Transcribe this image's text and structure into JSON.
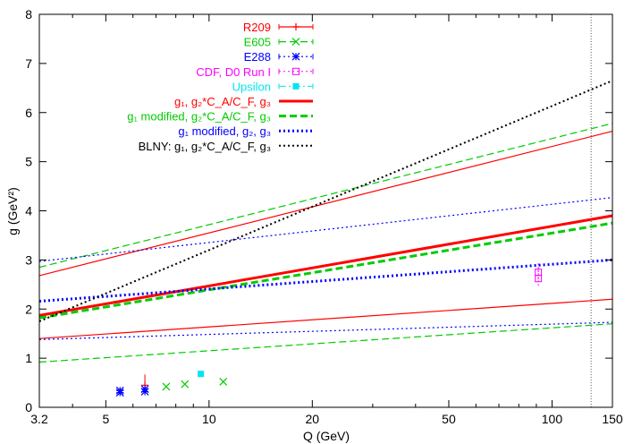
{
  "chart_data": {
    "type": "line",
    "xscale": "log",
    "xlim": [
      3.2,
      150
    ],
    "ylim": [
      0,
      8
    ],
    "xlabel": "Q (GeV)",
    "ylabel": "g (GeV²)",
    "xticks": [
      3.2,
      5,
      10,
      20,
      50,
      100,
      150
    ],
    "xtick_labels": [
      "3.2",
      "5",
      "10",
      "20",
      "50",
      "100",
      "150"
    ],
    "yticks": [
      0,
      1,
      2,
      3,
      4,
      5,
      6,
      7,
      8
    ],
    "ytick_labels": [
      "0",
      "1",
      "2",
      "3",
      "4",
      "5",
      "6",
      "7",
      "8"
    ],
    "vline_x": 130,
    "series": [
      {
        "name": "R209",
        "color": "#ff0000",
        "style": "solid",
        "width": 1.2,
        "marker": "plus",
        "points": [
          {
            "x": 6.5,
            "y": 0.45
          }
        ],
        "band_lines": [
          {
            "y_at_xmin": 2.68,
            "y_at_xmax": 5.62
          },
          {
            "y_at_xmin": 1.4,
            "y_at_xmax": 2.2
          }
        ]
      },
      {
        "name": "E605",
        "color": "#00cc00",
        "style": "dashed",
        "width": 1.2,
        "marker": "cross",
        "points": [
          {
            "x": 7.5,
            "y": 0.42
          },
          {
            "x": 8.5,
            "y": 0.47
          },
          {
            "x": 11.0,
            "y": 0.52
          }
        ],
        "band_lines": [
          {
            "y_at_xmin": 2.85,
            "y_at_xmax": 5.78
          },
          {
            "y_at_xmin": 0.92,
            "y_at_xmax": 1.7
          }
        ]
      },
      {
        "name": "E288",
        "color": "#0000ff",
        "style": "dotted",
        "width": 1.2,
        "marker": "star",
        "points": [
          {
            "x": 5.5,
            "y": 0.3
          },
          {
            "x": 5.5,
            "y": 0.34
          },
          {
            "x": 6.5,
            "y": 0.32
          },
          {
            "x": 6.5,
            "y": 0.37
          }
        ],
        "band_lines": [
          {
            "y_at_xmin": 2.97,
            "y_at_xmax": 4.27
          },
          {
            "y_at_xmin": 1.38,
            "y_at_xmax": 1.73
          }
        ]
      },
      {
        "name": "CDF, D0 Run I",
        "color": "#ff00ff",
        "style": "dotted",
        "width": 1.0,
        "marker": "box",
        "points": [
          {
            "x": 91.2,
            "y": 2.62
          },
          {
            "x": 91.2,
            "y": 2.75
          }
        ],
        "band_lines": []
      },
      {
        "name": "Upsilon",
        "color": "#00e5ee",
        "style": "dashdot",
        "width": 1.0,
        "marker": "filled-box",
        "points": [
          {
            "x": 9.46,
            "y": 0.68
          }
        ],
        "band_lines": []
      },
      {
        "name": "g₁, g₂*C_A/C_F, g₃",
        "color": "#ff0000",
        "style": "solid",
        "width": 3.0,
        "marker": "none",
        "points": [],
        "band_lines": [
          {
            "y_at_xmin": 1.87,
            "y_at_xmax": 3.9
          }
        ]
      },
      {
        "name": "g₁ modified, g₂*C_A/C_F, g₃",
        "color": "#00cc00",
        "style": "dashed",
        "width": 3.0,
        "marker": "none",
        "points": [],
        "band_lines": [
          {
            "y_at_xmin": 1.82,
            "y_at_xmax": 3.75
          }
        ]
      },
      {
        "name": "g₁ modified, g₂, g₃",
        "color": "#0000ff",
        "style": "dotted",
        "width": 3.0,
        "marker": "none",
        "points": [],
        "band_lines": [
          {
            "y_at_xmin": 2.16,
            "y_at_xmax": 3.0
          }
        ]
      },
      {
        "name": "BLNY: g₁, g₂*C_A/C_F, g₃",
        "color": "#000000",
        "style": "dotted",
        "width": 2.0,
        "marker": "none",
        "points": [],
        "band_lines": [
          {
            "y_at_xmin": 1.75,
            "y_at_xmax": 6.65
          }
        ]
      }
    ]
  },
  "legend": {
    "items": [
      {
        "label": "R209",
        "color": "#ff0000"
      },
      {
        "label": "E605",
        "color": "#00cc00"
      },
      {
        "label": "E288",
        "color": "#0000ff"
      },
      {
        "label": "CDF, D0 Run I",
        "color": "#ff00ff"
      },
      {
        "label": "Upsilon",
        "color": "#00e5ee"
      },
      {
        "label": "g₁, g₂*C_A/C_F, g₃",
        "color": "#ff0000"
      },
      {
        "label": "g₁ modified, g₂*C_A/C_F, g₃",
        "color": "#00cc00"
      },
      {
        "label": "g₁ modified, g₂, g₃",
        "color": "#0000ff"
      },
      {
        "label": "BLNY: g₁, g₂*C_A/C_F, g₃",
        "color": "#000000"
      }
    ]
  }
}
